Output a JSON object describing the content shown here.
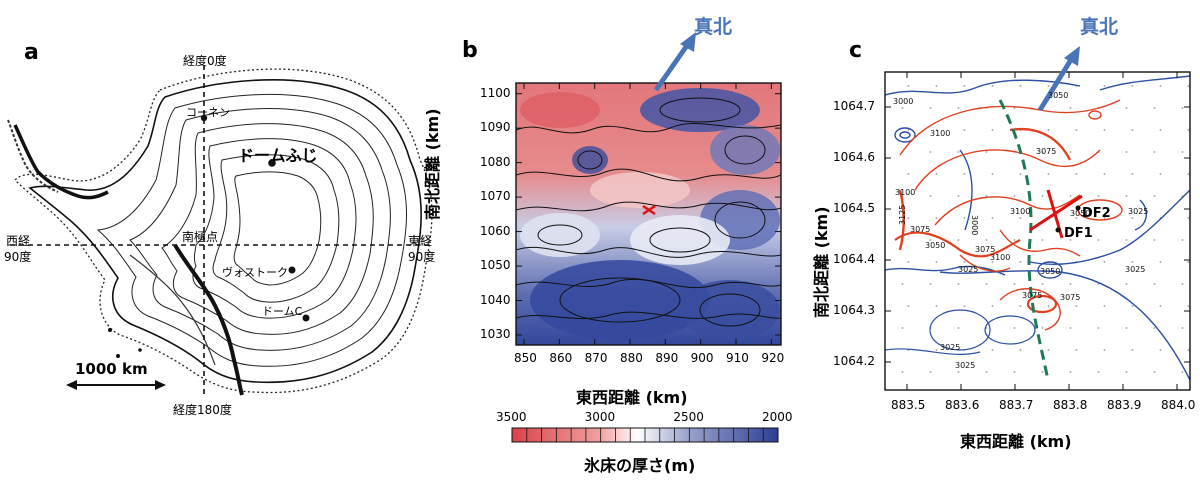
{
  "panel_a": {
    "letter": "a",
    "meridian_top": "経度0度",
    "meridian_bottom": "経度180度",
    "west_line1": "西経",
    "west_line2": "90度",
    "east_line1": "東経",
    "east_line2": "90度",
    "south_pole": "南極点",
    "kohnen": "コーネン",
    "dome_fuji": "ドームふじ",
    "vostok": "ヴォストーク",
    "dome_c": "ドームC",
    "scale_bar": "1000 km"
  },
  "panel_b": {
    "letter": "b",
    "true_north": "真北",
    "ylabel": "南北距離 (km)",
    "xlabel": "東西距離 (km)",
    "x_ticks": [
      "850",
      "860",
      "870",
      "880",
      "890",
      "900",
      "910",
      "920"
    ],
    "y_ticks": [
      "1030",
      "1040",
      "1050",
      "1060",
      "1070",
      "1080",
      "1090",
      "1100"
    ],
    "colorbar_ticks": [
      "3500",
      "3000",
      "2500",
      "2000"
    ],
    "colorbar_label": "氷床の厚さ(m)",
    "colors": {
      "thick": "#d9434a",
      "mid": "#ffffff",
      "thin": "#2d3f95"
    }
  },
  "panel_c": {
    "letter": "c",
    "true_north": "真北",
    "ylabel": "南北距離 (km)",
    "xlabel": "東西距離 (km)",
    "x_ticks": [
      "883.5",
      "883.6",
      "883.7",
      "883.8",
      "883.9",
      "884.0"
    ],
    "y_ticks": [
      "1064.2",
      "1064.3",
      "1064.4",
      "1064.5",
      "1064.6",
      "1064.7"
    ],
    "df1": "DF1",
    "df2": "DF2",
    "contour_labels": [
      "3000",
      "3025",
      "3050",
      "3075",
      "3100",
      "3125"
    ],
    "colors": {
      "red_contour": "#e0401f",
      "blue_contour": "#2b4fa3",
      "path": "#1f7a55",
      "arrow": "#4a74b8"
    }
  }
}
